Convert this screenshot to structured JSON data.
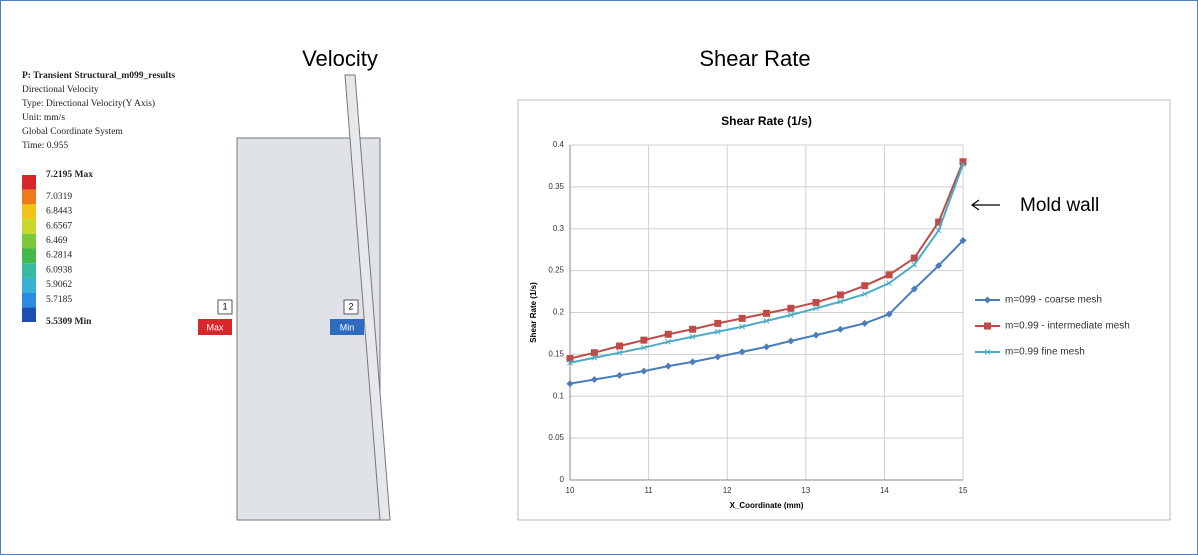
{
  "left_panel": {
    "title": "P: Transient Structural_m099_results",
    "lines": [
      "Directional Velocity",
      "Type: Directional Velocity(Y Axis)",
      "Unit: mm/s",
      "Global Coordinate System",
      "Time: 0.955"
    ],
    "legend_labels": [
      "7.2195 Max",
      "7.0319",
      "6.8443",
      "6.6567",
      "6.469",
      "6.2814",
      "6.0938",
      "5.9062",
      "5.7185",
      "5.5309 Min"
    ],
    "probe_labels": [
      "1",
      "2"
    ],
    "probe_tags": [
      "Max",
      "Min"
    ]
  },
  "headings": {
    "velocity": "Velocity",
    "shear_rate": "Shear Rate"
  },
  "annotation": "Mold wall",
  "chart_data": {
    "type": "line",
    "title": "Shear Rate (1/s)",
    "x_label": "X_Coordinate (mm)",
    "y_label": "Shear Rate (1/s)",
    "x": [
      10,
      10.31,
      10.63,
      10.94,
      11.25,
      11.56,
      11.88,
      12.19,
      12.5,
      12.81,
      13.13,
      13.44,
      13.75,
      14.06,
      14.38,
      14.69,
      15
    ],
    "series": [
      {
        "name": "m=099 - coarse mesh",
        "color": "#4a7ebb",
        "marker": "diamond",
        "values": [
          0.115,
          0.12,
          0.125,
          0.13,
          0.136,
          0.141,
          0.147,
          0.153,
          0.159,
          0.166,
          0.173,
          0.18,
          0.187,
          0.198,
          0.228,
          0.256,
          0.286
        ]
      },
      {
        "name": "m=0.99 - intermediate mesh",
        "color": "#be4b48",
        "marker": "square",
        "values": [
          0.145,
          0.152,
          0.16,
          0.167,
          0.174,
          0.18,
          0.187,
          0.193,
          0.199,
          0.205,
          0.212,
          0.221,
          0.232,
          0.245,
          0.265,
          0.308,
          0.38
        ]
      },
      {
        "name": "m=0.99 fine mesh",
        "color": "#4bacc6",
        "marker": "x",
        "values": [
          0.14,
          0.146,
          0.152,
          0.158,
          0.165,
          0.171,
          0.177,
          0.183,
          0.19,
          0.197,
          0.205,
          0.213,
          0.222,
          0.235,
          0.257,
          0.298,
          0.377
        ]
      }
    ],
    "xlim": [
      10,
      15
    ],
    "xticks": [
      10,
      11,
      12,
      13,
      14,
      15
    ],
    "ylim": [
      0,
      0.4
    ],
    "yticks": [
      0,
      0.05,
      0.1,
      0.15,
      0.2,
      0.25,
      0.3,
      0.35,
      0.4
    ],
    "grid": true,
    "legend": "right"
  }
}
